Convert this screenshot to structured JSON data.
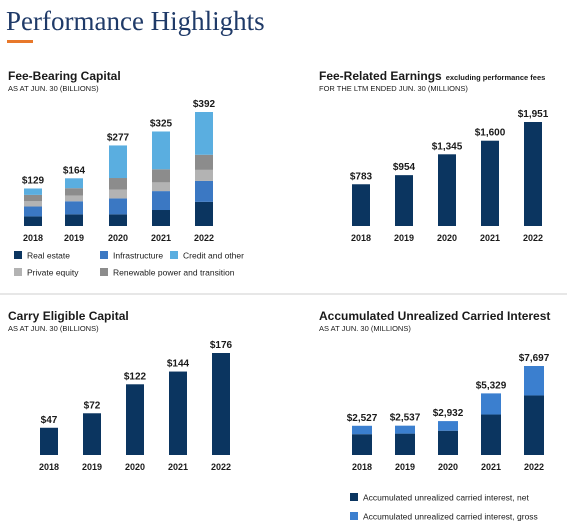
{
  "title": "Performance Highlights",
  "chart_data": [
    {
      "type": "stacked_bar",
      "title": "Fee-Bearing Capital",
      "subtitle": "AS AT JUN. 30 (BILLIONS)",
      "categories": [
        "2018",
        "2019",
        "2020",
        "2021",
        "2022"
      ],
      "series": [
        {
          "name": "Real estate",
          "color": "#0b3560",
          "values": [
            33,
            40,
            40,
            55,
            83
          ]
        },
        {
          "name": "Infrastructure",
          "color": "#3b78c3",
          "values": [
            34,
            45,
            55,
            65,
            72
          ]
        },
        {
          "name": "Private equity",
          "color": "#b3b3b3",
          "values": [
            18,
            20,
            30,
            30,
            38
          ]
        },
        {
          "name": "Renewable power and transition",
          "color": "#8c8c8c",
          "values": [
            22,
            25,
            40,
            45,
            52
          ]
        },
        {
          "name": "Credit and other",
          "color": "#5aaee0",
          "values": [
            22,
            34,
            112,
            130,
            147
          ]
        }
      ],
      "totals": [
        129,
        164,
        277,
        325,
        392
      ],
      "total_labels": [
        "$129",
        "$164",
        "$277",
        "$325",
        "$392"
      ]
    },
    {
      "type": "bar",
      "title": "Fee-Related Earnings",
      "title_note": "excluding performance fees",
      "subtitle": "FOR THE LTM ENDED JUN. 30 (MILLIONS)",
      "categories": [
        "2018",
        "2019",
        "2020",
        "2021",
        "2022"
      ],
      "values": [
        783,
        954,
        1345,
        1600,
        1951
      ],
      "value_labels": [
        "$783",
        "$954",
        "$1,345",
        "$1,600",
        "$1,951"
      ],
      "color": "#0b3560"
    },
    {
      "type": "bar",
      "title": "Carry Eligible Capital",
      "subtitle": "AS AT JUN. 30 (BILLIONS)",
      "categories": [
        "2018",
        "2019",
        "2020",
        "2021",
        "2022"
      ],
      "values": [
        47,
        72,
        122,
        144,
        176
      ],
      "value_labels": [
        "$47",
        "$72",
        "$122",
        "$144",
        "$176"
      ],
      "color": "#0b3560"
    },
    {
      "type": "stacked_bar",
      "title": "Accumulated Unrealized Carried Interest",
      "subtitle": "AS AT JUN. 30 (MILLIONS)",
      "categories": [
        "2018",
        "2019",
        "2020",
        "2021",
        "2022"
      ],
      "series": [
        {
          "name": "Accumulated unrealized carried interest, net",
          "color": "#0b3560",
          "values": [
            1800,
            1850,
            2100,
            3500,
            5150
          ]
        },
        {
          "name": "Accumulated unrealized carried interest, gross",
          "color": "#3b7fcf",
          "values": [
            727,
            687,
            832,
            1829,
            2547
          ]
        }
      ],
      "totals": [
        2527,
        2537,
        2932,
        5329,
        7697
      ],
      "total_labels": [
        "$2,527",
        "$2,537",
        "$2,932",
        "$5,329",
        "$7,697"
      ]
    }
  ]
}
